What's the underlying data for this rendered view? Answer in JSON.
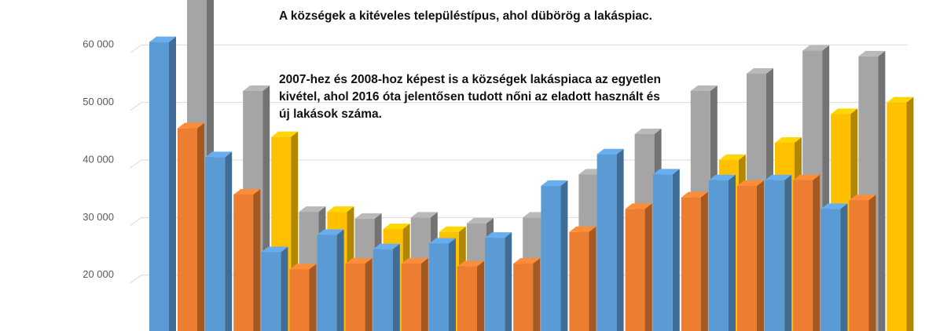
{
  "chart_data": {
    "type": "bar3d",
    "annotations": [
      "A községek a kitéveles településtípus, ahol dübörög a lakáspiac.",
      "2007-hez és 2008-hoz képest is a községek lakáspiaca az egyetlen kivétel, ahol 2016  óta jelentősen  tudott nőni az eladott használt és új lakások száma."
    ],
    "categories": [
      null,
      null,
      null,
      null,
      null,
      null,
      null,
      null,
      null,
      null,
      null,
      null,
      null
    ],
    "series": [
      {
        "color": "#ffc000",
        "values": [
          null,
          44000,
          31000,
          28000,
          27500,
          null,
          null,
          null,
          null,
          40000,
          43000,
          48000,
          50000
        ]
      },
      {
        "color": "#a5a5a5",
        "values": [
          70000,
          52000,
          31000,
          29800,
          30000,
          29000,
          30000,
          37500,
          44500,
          52000,
          55000,
          59000,
          58000
        ]
      },
      {
        "color": "#ed7d31",
        "values": [
          45500,
          34000,
          21000,
          22000,
          22000,
          21500,
          22000,
          27500,
          31500,
          33500,
          35500,
          36500,
          33000
        ]
      },
      {
        "color": "#5b9bd5",
        "values": [
          60500,
          40500,
          24000,
          27000,
          24500,
          25500,
          26500,
          35500,
          41000,
          37500,
          36500,
          36500,
          31500
        ]
      }
    ],
    "ylim": [
      10300,
      67800
    ],
    "yticks": [
      {
        "value": 20000,
        "label": "20 000"
      },
      {
        "value": 30000,
        "label": "30 000"
      },
      {
        "value": 40000,
        "label": "40 000"
      },
      {
        "value": 50000,
        "label": "50 000"
      },
      {
        "value": 60000,
        "label": "60 000"
      }
    ],
    "grid": true
  }
}
